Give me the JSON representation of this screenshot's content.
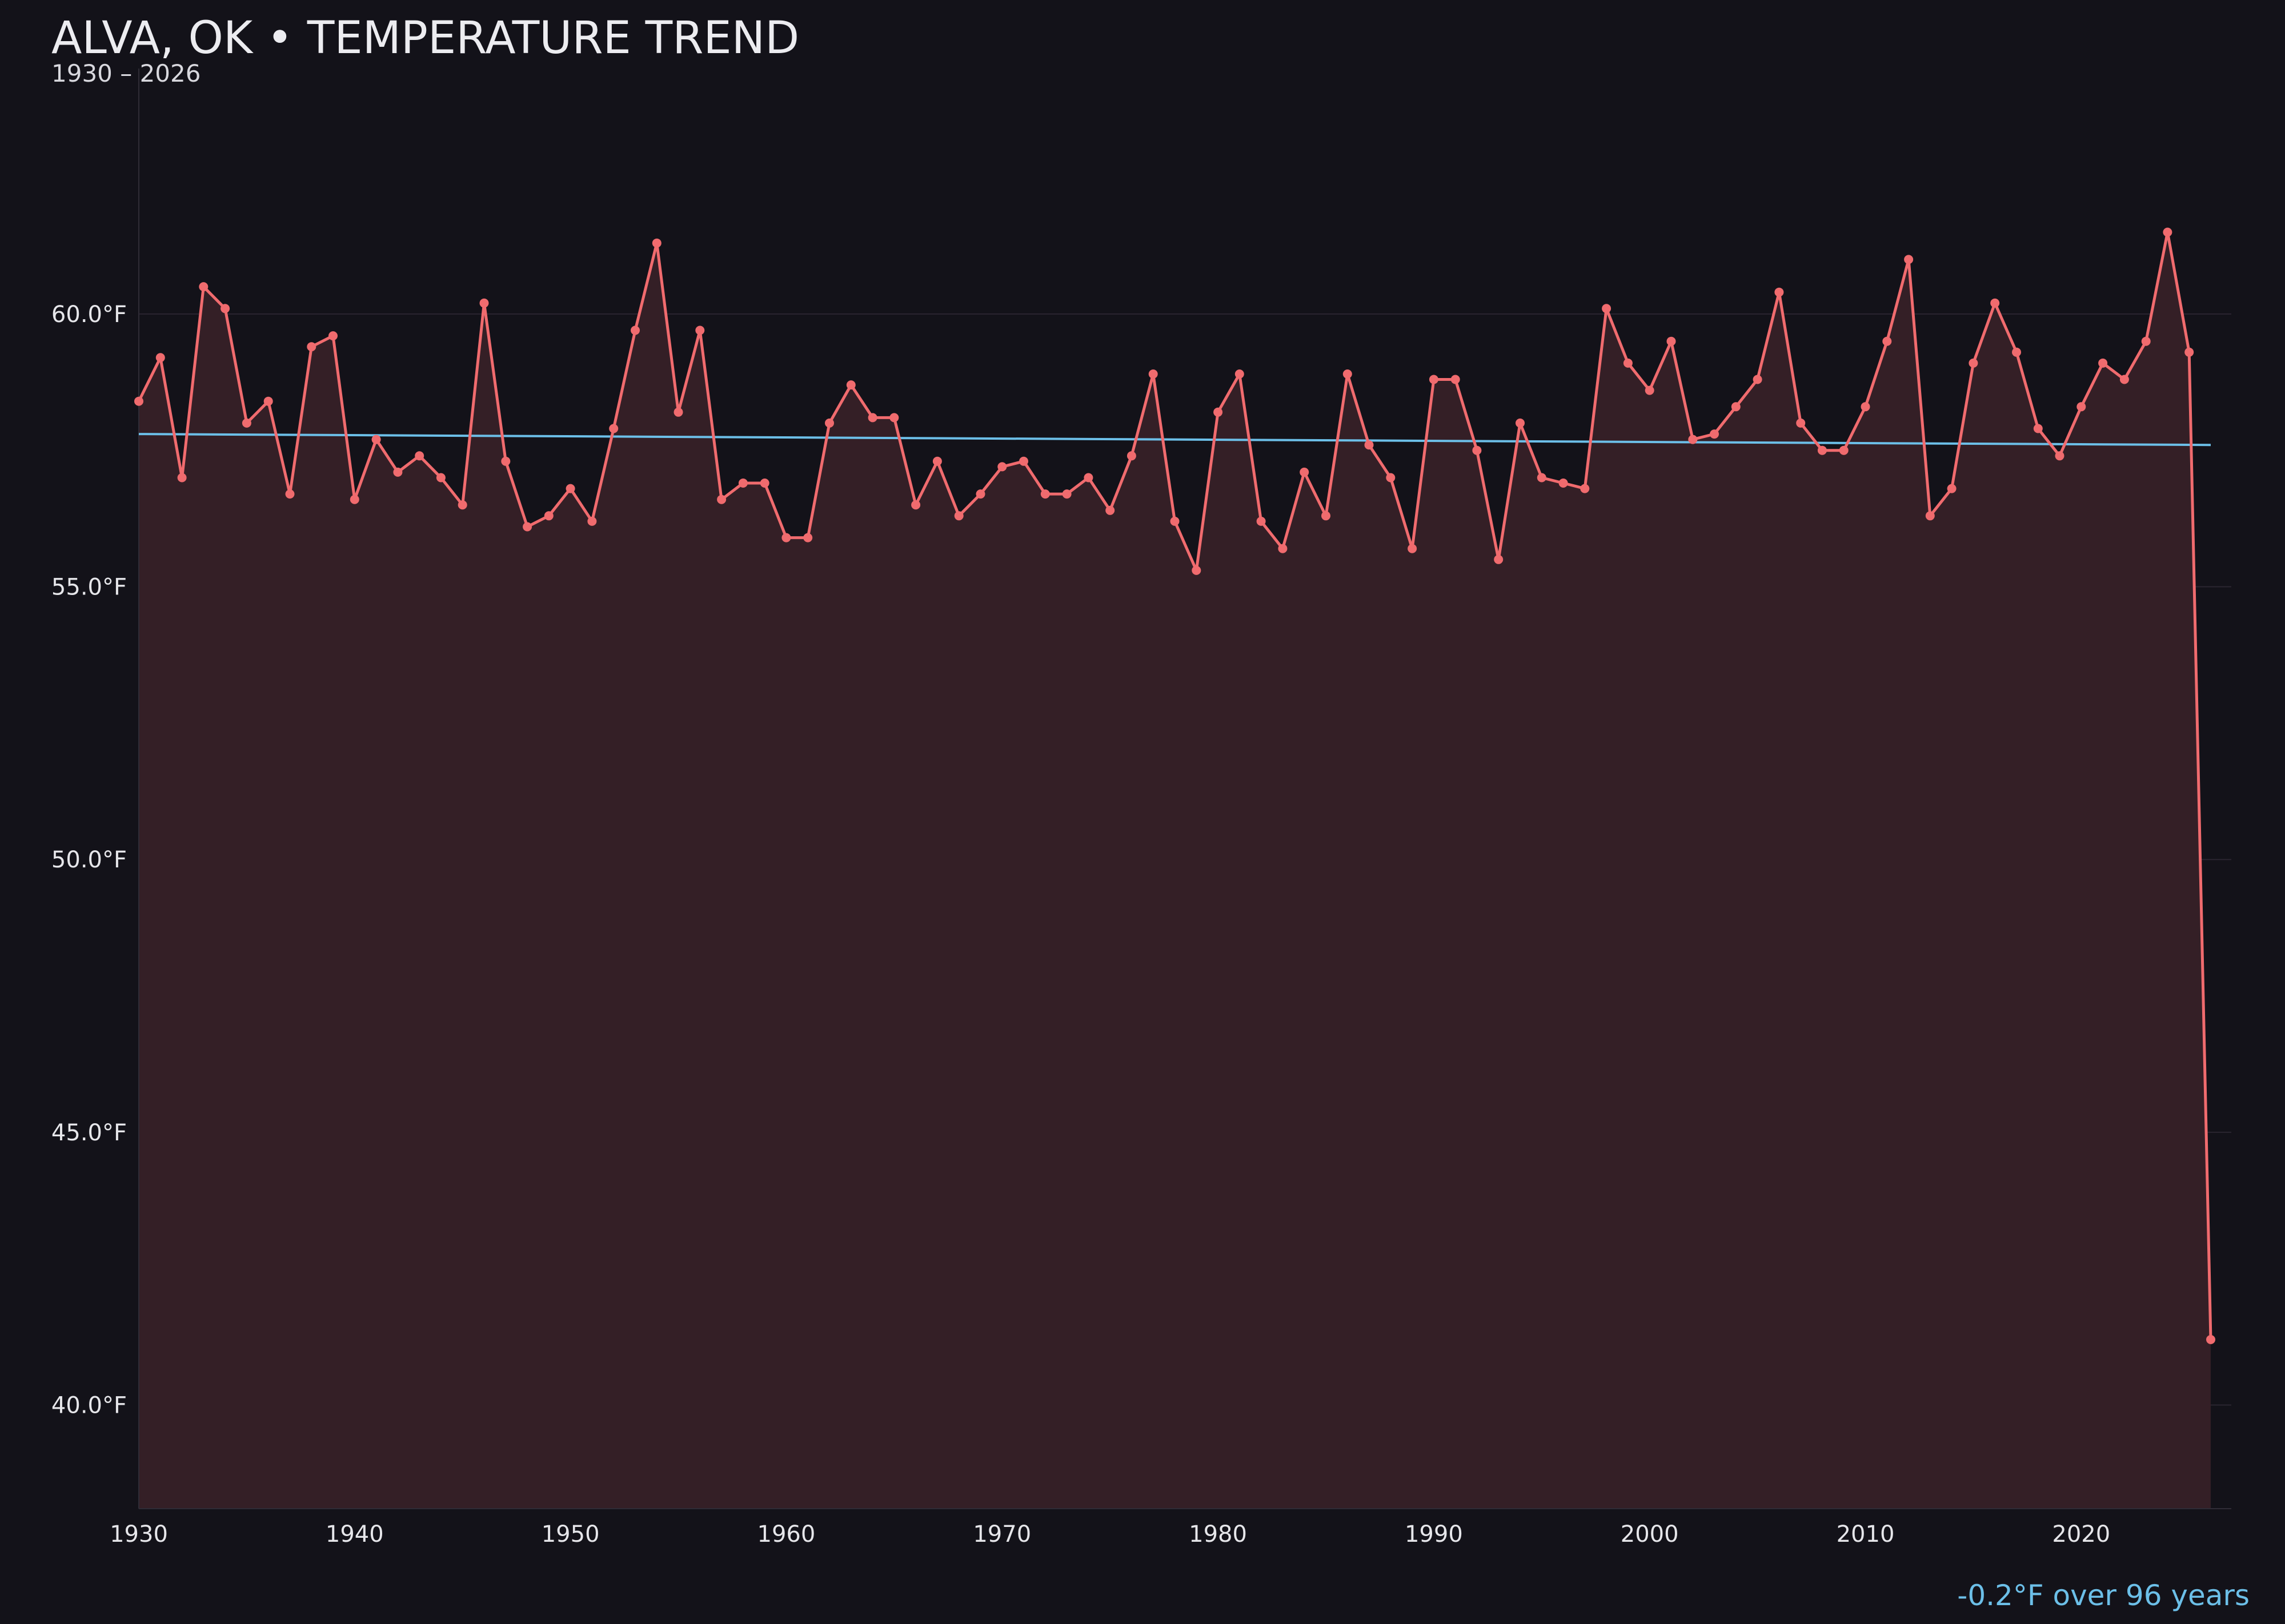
{
  "title": "ALVA, OK • TEMPERATURE TREND",
  "subtitle": "1930 – 2026",
  "trend_note": "-0.2°F over 96 years",
  "colors": {
    "background": "#131219",
    "series_line": "#f06b6e",
    "area_fill": "#341f26",
    "trend_line": "#6cbfe8",
    "grid": "#2a2530",
    "text": "#e6e6ea"
  },
  "chart_data": {
    "type": "line",
    "title": "ALVA, OK • TEMPERATURE TREND",
    "subtitle": "1930 – 2026",
    "xlabel": "",
    "ylabel": "",
    "xlim": [
      1930,
      2027
    ],
    "ylim": [
      38.1,
      64.5
    ],
    "grid": true,
    "x_ticks": [
      1930,
      1940,
      1950,
      1960,
      1970,
      1980,
      1990,
      2000,
      2010,
      2020
    ],
    "x_tick_labels": [
      "1930",
      "1940",
      "1950",
      "1960",
      "1970",
      "1980",
      "1990",
      "2000",
      "2010",
      "2020"
    ],
    "y_ticks": [
      40,
      45,
      50,
      55,
      60
    ],
    "y_tick_labels": [
      "40.0°F",
      "45.0°F",
      "50.0°F",
      "55.0°F",
      "60.0°F"
    ],
    "series": [
      {
        "x": [
          1930,
          1931,
          1932,
          1933,
          1934,
          1935,
          1936,
          1937,
          1938,
          1939,
          1940,
          1941,
          1942,
          1943,
          1944,
          1945,
          1946,
          1947,
          1948,
          1949,
          1950,
          1951,
          1952,
          1953,
          1954,
          1955,
          1956,
          1957,
          1958,
          1959,
          1960,
          1961,
          1962,
          1963,
          1964,
          1965,
          1966,
          1967,
          1968,
          1969,
          1970,
          1971,
          1972,
          1973,
          1974,
          1975,
          1976,
          1977,
          1978,
          1979,
          1980,
          1981,
          1982,
          1983,
          1984,
          1985,
          1986,
          1987,
          1988,
          1989,
          1990,
          1991,
          1992,
          1993,
          1994,
          1995,
          1996,
          1997,
          1998,
          1999,
          2000,
          2001,
          2002,
          2003,
          2004,
          2005,
          2006,
          2007,
          2008,
          2009,
          2010,
          2011,
          2012,
          2013,
          2014,
          2015,
          2016,
          2017,
          2018,
          2019,
          2020,
          2021,
          2022,
          2023,
          2024,
          2025,
          2026
        ],
        "values": [
          58.4,
          59.2,
          57.0,
          60.5,
          60.1,
          58.0,
          58.4,
          56.7,
          59.4,
          59.6,
          56.6,
          57.7,
          57.1,
          57.4,
          57.0,
          56.5,
          60.2,
          57.3,
          56.1,
          56.3,
          56.8,
          56.2,
          57.9,
          59.7,
          61.3,
          58.2,
          59.7,
          56.6,
          56.9,
          56.9,
          55.9,
          55.9,
          58.0,
          58.7,
          58.1,
          58.1,
          56.5,
          57.3,
          56.3,
          56.7,
          57.2,
          57.3,
          56.7,
          56.7,
          57.0,
          56.4,
          57.4,
          58.9,
          56.2,
          55.3,
          58.2,
          58.9,
          56.2,
          55.7,
          57.1,
          56.3,
          58.9,
          57.6,
          57.0,
          55.7,
          58.8,
          58.8,
          57.5,
          55.5,
          58.0,
          57.0,
          56.9,
          56.8,
          60.1,
          59.1,
          58.6,
          59.5,
          57.7,
          57.8,
          58.3,
          58.8,
          60.4,
          58.0,
          57.5,
          57.5,
          58.3,
          59.5,
          61.0,
          56.3,
          56.8,
          59.1,
          60.2,
          59.3,
          57.9,
          57.4,
          58.3,
          59.1,
          58.8,
          59.5,
          61.5,
          59.3,
          41.2
        ]
      }
    ],
    "trend": {
      "x": [
        1930,
        2026
      ],
      "values": [
        57.8,
        57.6
      ]
    }
  }
}
